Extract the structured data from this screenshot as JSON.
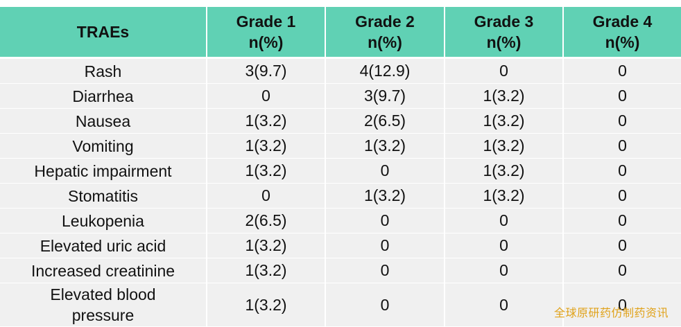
{
  "table": {
    "header": {
      "traes": "TRAEs",
      "grades": [
        {
          "grade": "Grade 1",
          "unit": "n(%)"
        },
        {
          "grade": "Grade 2",
          "unit": "n(%)"
        },
        {
          "grade": "Grade 3",
          "unit": "n(%)"
        },
        {
          "grade": "Grade 4",
          "unit": "n(%)"
        }
      ]
    },
    "rows": [
      {
        "name": "Rash",
        "g1": "3(9.7)",
        "g2": "4(12.9)",
        "g3": "0",
        "g4": "0"
      },
      {
        "name": "Diarrhea",
        "g1": "0",
        "g2": "3(9.7)",
        "g3": "1(3.2)",
        "g4": "0"
      },
      {
        "name": "Nausea",
        "g1": "1(3.2)",
        "g2": "2(6.5)",
        "g3": "1(3.2)",
        "g4": "0"
      },
      {
        "name": "Vomiting",
        "g1": "1(3.2)",
        "g2": "1(3.2)",
        "g3": "1(3.2)",
        "g4": "0"
      },
      {
        "name": "Hepatic impairment",
        "g1": "1(3.2)",
        "g2": "0",
        "g3": "1(3.2)",
        "g4": "0"
      },
      {
        "name": "Stomatitis",
        "g1": "0",
        "g2": "1(3.2)",
        "g3": "1(3.2)",
        "g4": "0"
      },
      {
        "name": "Leukopenia",
        "g1": "2(6.5)",
        "g2": "0",
        "g3": "0",
        "g4": "0"
      },
      {
        "name": "Elevated uric acid",
        "g1": "1(3.2)",
        "g2": "0",
        "g3": "0",
        "g4": "0"
      },
      {
        "name": "Increased creatinine",
        "g1": "1(3.2)",
        "g2": "0",
        "g3": "0",
        "g4": "0"
      },
      {
        "name_line1": "Elevated blood",
        "name_line2": "pressure",
        "g1": "1(3.2)",
        "g2": "0",
        "g3": "0",
        "g4": "0"
      }
    ]
  },
  "watermark": "全球原研药仿制药资讯",
  "colors": {
    "header_bg": "#60d1b4",
    "cell_bg": "#f0f0f0",
    "watermark": "#e0a21a"
  }
}
